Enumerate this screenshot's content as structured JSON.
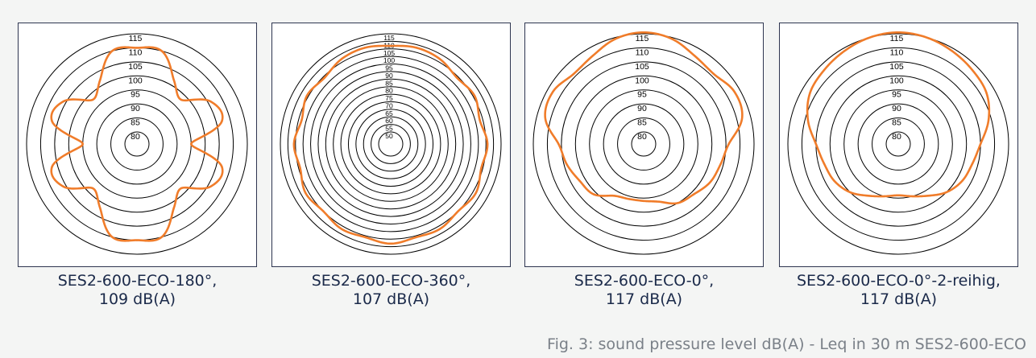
{
  "figure_caption": "Fig. 3: sound pressure level dB(A) - Leq in 30 m  SES2-600-ECO",
  "colors": {
    "curve": "#f07c2a",
    "ring": "#000000",
    "frame": "#2e3550",
    "caption_text": "#1b2a4a",
    "footer_text": "#7a8088"
  },
  "chart_data": [
    {
      "type": "polar",
      "caption_line1": "SES2-600-ECO-180°,",
      "caption_line2": "109 dB(A)",
      "ring_labels": [
        "80",
        "85",
        "90",
        "95",
        "100",
        "105",
        "110",
        "115"
      ],
      "r_range_db": [
        75,
        115
      ],
      "angles_deg": [
        0,
        15,
        30,
        45,
        60,
        75,
        90,
        105,
        120,
        135,
        150,
        165,
        180,
        195,
        210,
        225,
        240,
        255,
        270,
        285,
        300,
        315,
        330,
        345
      ],
      "values_db": [
        110,
        110,
        102,
        98,
        106,
        107,
        95,
        107,
        106,
        98,
        102,
        110,
        110,
        110,
        102,
        98,
        106,
        107,
        95,
        107,
        106,
        98,
        102,
        110
      ],
      "grid": true
    },
    {
      "type": "polar",
      "caption_line1": "SES2-600-ECO-360°,",
      "caption_line2": "107 dB(A)",
      "ring_labels": [
        "50",
        "55",
        "60",
        "65",
        "70",
        "75",
        "80",
        "85",
        "90",
        "95",
        "100",
        "105",
        "110",
        "115"
      ],
      "r_range_db": [
        45,
        115
      ],
      "angles_deg": [
        0,
        15,
        30,
        45,
        60,
        75,
        90,
        105,
        120,
        135,
        150,
        165,
        180,
        195,
        210,
        225,
        240,
        255,
        270,
        285,
        300,
        315,
        330,
        345
      ],
      "values_db": [
        107,
        108,
        107,
        104,
        106,
        103,
        106,
        104,
        107,
        105,
        107,
        106,
        108,
        106,
        107,
        105,
        107,
        104,
        106,
        103,
        106,
        104,
        107,
        108
      ],
      "grid": true
    },
    {
      "type": "polar",
      "caption_line1": "SES2-600-ECO-0°,",
      "caption_line2": "117 dB(A)",
      "ring_labels": [
        "80",
        "85",
        "90",
        "95",
        "100",
        "105",
        "110",
        "115"
      ],
      "r_range_db": [
        75,
        115
      ],
      "angles_deg": [
        0,
        15,
        30,
        45,
        60,
        75,
        90,
        105,
        120,
        135,
        150,
        165,
        180,
        195,
        210,
        225,
        240,
        255,
        270,
        285,
        300,
        315,
        330,
        345
      ],
      "values_db": [
        115.5,
        114.5,
        112,
        111,
        113,
        112,
        106,
        104,
        103,
        101,
        100,
        97,
        96,
        96,
        97,
        101,
        102,
        104,
        106,
        112,
        113,
        111,
        112,
        114.5
      ],
      "grid": true
    },
    {
      "type": "polar",
      "caption_line1": "SES2-600-ECO-0°-2-reihig,",
      "caption_line2": "117 dB(A)",
      "ring_labels": [
        "80",
        "85",
        "90",
        "95",
        "100",
        "105",
        "110",
        "115"
      ],
      "r_range_db": [
        75,
        115
      ],
      "angles_deg": [
        0,
        15,
        30,
        45,
        60,
        75,
        90,
        105,
        120,
        135,
        150,
        165,
        180,
        195,
        210,
        225,
        240,
        255,
        270,
        285,
        300,
        315,
        330,
        345
      ],
      "values_db": [
        115.5,
        115,
        114,
        113,
        112,
        109,
        105,
        103,
        102,
        100,
        97,
        95,
        94,
        95,
        97,
        100,
        102,
        103,
        105,
        109,
        112,
        113,
        114,
        115
      ],
      "grid": true
    }
  ]
}
